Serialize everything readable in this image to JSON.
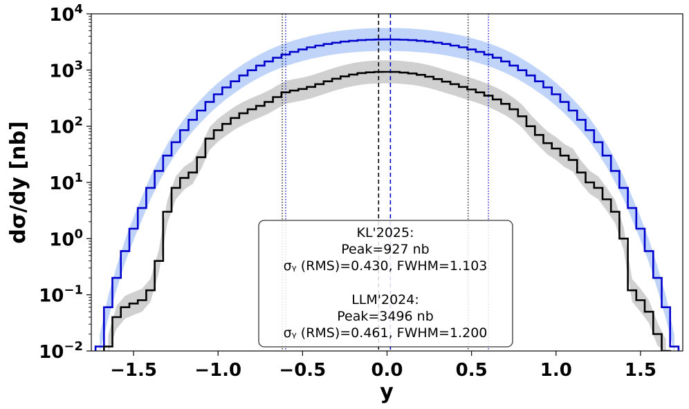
{
  "chart_data": {
    "type": "line",
    "title": "",
    "xlabel": "y",
    "ylabel": "dσ/dy [nb]",
    "xlim": [
      -1.75,
      1.75
    ],
    "ylim": [
      0.01,
      10000
    ],
    "yscale": "log",
    "x_ticks": [
      {
        "value": -1.5,
        "label": "−1.5"
      },
      {
        "value": -1.0,
        "label": "−1.0"
      },
      {
        "value": -0.5,
        "label": "−0.5"
      },
      {
        "value": 0.0,
        "label": "0.0"
      },
      {
        "value": 0.5,
        "label": "0.5"
      },
      {
        "value": 1.0,
        "label": "1.0"
      },
      {
        "value": 1.5,
        "label": "1.5"
      }
    ],
    "y_ticks": [
      {
        "value": 0.01,
        "base": "10",
        "exp": "−2"
      },
      {
        "value": 0.1,
        "base": "10",
        "exp": "−1"
      },
      {
        "value": 1,
        "base": "10",
        "exp": "0"
      },
      {
        "value": 10,
        "base": "10",
        "exp": "1"
      },
      {
        "value": 100,
        "base": "10",
        "exp": "2"
      },
      {
        "value": 1000,
        "base": "10",
        "exp": "3"
      },
      {
        "value": 10000,
        "base": "10",
        "exp": "4"
      }
    ],
    "series": [
      {
        "name": "LLM'2024",
        "color": "#0000cc",
        "band_color": "#a9c5f5",
        "band_factor": 1.6,
        "x": [
          -1.7,
          -1.65,
          -1.6,
          -1.55,
          -1.5,
          -1.45,
          -1.4,
          -1.35,
          -1.3,
          -1.25,
          -1.2,
          -1.15,
          -1.1,
          -1.05,
          -1.0,
          -0.95,
          -0.9,
          -0.85,
          -0.8,
          -0.75,
          -0.7,
          -0.65,
          -0.6,
          -0.55,
          -0.5,
          -0.45,
          -0.4,
          -0.35,
          -0.3,
          -0.25,
          -0.2,
          -0.15,
          -0.1,
          -0.05,
          0.0,
          0.05,
          0.1,
          0.15,
          0.2,
          0.25,
          0.3,
          0.35,
          0.4,
          0.45,
          0.5,
          0.55,
          0.6,
          0.65,
          0.7,
          0.75,
          0.8,
          0.85,
          0.9,
          0.95,
          1.0,
          1.05,
          1.1,
          1.15,
          1.2,
          1.25,
          1.3,
          1.35,
          1.4,
          1.45,
          1.5,
          1.55,
          1.6,
          1.65,
          1.7
        ],
        "y": [
          0.012,
          0.06,
          0.2,
          0.6,
          1.5,
          3.5,
          8.0,
          16,
          30,
          52,
          85,
          130,
          190,
          270,
          370,
          490,
          630,
          800,
          990,
          1200,
          1420,
          1650,
          1880,
          2100,
          2320,
          2530,
          2720,
          2900,
          3060,
          3200,
          3310,
          3400,
          3460,
          3490,
          3496,
          3490,
          3460,
          3400,
          3310,
          3200,
          3060,
          2900,
          2720,
          2530,
          2320,
          2100,
          1880,
          1650,
          1420,
          1200,
          990,
          800,
          630,
          490,
          370,
          270,
          190,
          130,
          85,
          52,
          30,
          16,
          8.0,
          3.5,
          1.5,
          0.6,
          0.2,
          0.06,
          0.012
        ],
        "peak_nb": 3496,
        "peak_label": "Peak=3496 nb",
        "stats_label": "σᵧ (RMS)=0.461, FWHM=1.200",
        "vlines": [
          -0.05,
          0.02,
          -0.6,
          0.6
        ]
      },
      {
        "name": "KL'2025",
        "color": "#000000",
        "band_color": "#c0c0c0",
        "band_factor": 1.6,
        "x": [
          -1.65,
          -1.6,
          -1.55,
          -1.5,
          -1.45,
          -1.4,
          -1.35,
          -1.3,
          -1.25,
          -1.2,
          -1.15,
          -1.1,
          -1.05,
          -1.0,
          -0.95,
          -0.9,
          -0.85,
          -0.8,
          -0.75,
          -0.7,
          -0.65,
          -0.6,
          -0.55,
          -0.5,
          -0.45,
          -0.4,
          -0.35,
          -0.3,
          -0.25,
          -0.2,
          -0.15,
          -0.1,
          -0.05,
          0.0,
          0.05,
          0.1,
          0.15,
          0.2,
          0.25,
          0.3,
          0.35,
          0.4,
          0.45,
          0.5,
          0.55,
          0.6,
          0.65,
          0.7,
          0.75,
          0.8,
          0.85,
          0.9,
          0.95,
          1.0,
          1.05,
          1.1,
          1.15,
          1.2,
          1.25,
          1.3,
          1.35,
          1.4,
          1.45,
          1.5,
          1.55,
          1.6,
          1.65
        ],
        "y": [
          0.012,
          0.04,
          0.06,
          0.07,
          0.08,
          0.12,
          0.4,
          3.0,
          8.0,
          12,
          15,
          28,
          60,
          85,
          110,
          140,
          170,
          200,
          230,
          270,
          330,
          400,
          430,
          460,
          500,
          560,
          630,
          700,
          770,
          830,
          880,
          910,
          925,
          927,
          925,
          900,
          870,
          820,
          760,
          690,
          620,
          560,
          500,
          450,
          400,
          350,
          300,
          250,
          200,
          150,
          100,
          70,
          50,
          40,
          30,
          25,
          15,
          10,
          8.0,
          5.0,
          3.0,
          1.0,
          0.12,
          0.08,
          0.05,
          0.02,
          0.01
        ],
        "peak_nb": 927,
        "peak_label": "Peak=927 nb",
        "stats_label": "σᵧ (RMS)=0.430, FWHM=1.103",
        "vlines": [
          -0.62,
          0.48
        ]
      }
    ],
    "legend": {
      "position": "bottom-center",
      "lines": [
        "KL'2025:",
        "Peak=927 nb",
        "σᵧ (RMS)=0.430, FWHM=1.103",
        "",
        "LLM'2024:",
        "Peak=3496 nb",
        "σᵧ (RMS)=0.461, FWHM=1.200"
      ]
    },
    "grid": false
  }
}
